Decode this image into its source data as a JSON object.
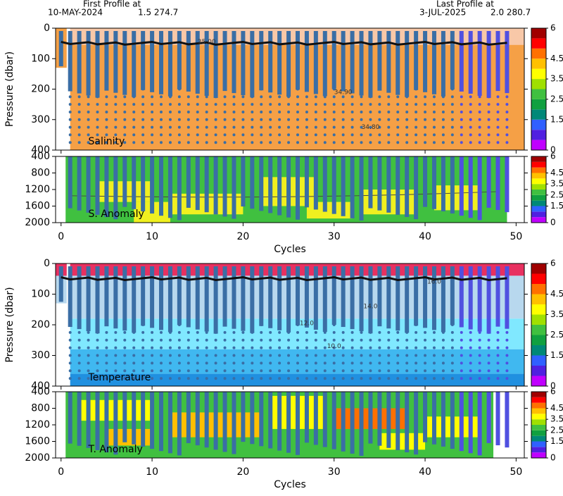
{
  "header": {
    "first_title": "First Profile at",
    "first_date": "10-MAY-2024",
    "first_pos": "1.5 274.7",
    "last_title": "Last Profile at",
    "last_date": "3-JUL-2025",
    "last_pos": "2.0 280.7"
  },
  "chart_data": [
    {
      "type": "section",
      "annotation": "Salinity",
      "ylabel": "Pressure (dbar)",
      "y_inverted": true,
      "ylim": [
        0,
        400
      ],
      "yticks": [
        0,
        100,
        200,
        300,
        400
      ],
      "xlim": [
        -0.6,
        50.9
      ],
      "xticks": [
        0,
        10,
        20,
        30,
        40,
        50
      ],
      "x": [
        0,
        1,
        2,
        3,
        4,
        5,
        6,
        7,
        8,
        9,
        10,
        11,
        12,
        13,
        14,
        15,
        16,
        17,
        18,
        19,
        20,
        21,
        22,
        23,
        24,
        25,
        26,
        27,
        28,
        29,
        30,
        31,
        32,
        33,
        34,
        35,
        36,
        37,
        38,
        39,
        40,
        41,
        42,
        43,
        44,
        45,
        46,
        47,
        48,
        49
      ],
      "contour_labels": [
        {
          "text": "34.90",
          "x": 31,
          "y": 210
        },
        {
          "text": "35.00",
          "x": 16,
          "y": 45
        },
        {
          "text": "34.80",
          "x": 34,
          "y": 325
        }
      ],
      "colorbar": {
        "ylim": [
          0,
          6
        ],
        "ticks": [
          0,
          1.5,
          2.5,
          3.5,
          4.5,
          6
        ]
      }
    },
    {
      "type": "section",
      "annotation": "S. Anomaly",
      "y_inverted": true,
      "ylim": [
        400,
        2000
      ],
      "yticks": [
        400,
        800,
        1200,
        1600,
        2000
      ],
      "xlim": [
        -0.6,
        50.9
      ],
      "xticks": [
        0,
        10,
        20,
        30,
        40,
        50
      ],
      "xlabel": "Cycles",
      "colorbar": {
        "ylim": [
          0,
          6
        ],
        "ticks": [
          0,
          1.5,
          2.5,
          3.5,
          4.5,
          6
        ]
      }
    },
    {
      "type": "section",
      "annotation": "Temperature",
      "ylabel": "Pressure (dbar)",
      "y_inverted": true,
      "ylim": [
        0,
        400
      ],
      "yticks": [
        0,
        100,
        200,
        300,
        400
      ],
      "xlim": [
        -0.6,
        50.9
      ],
      "xticks": [
        0,
        10,
        20,
        30,
        40,
        50
      ],
      "contour_labels": [
        {
          "text": "14.0",
          "x": 34,
          "y": 140
        },
        {
          "text": "12.0",
          "x": 27,
          "y": 195
        },
        {
          "text": "10.0",
          "x": 30,
          "y": 270
        },
        {
          "text": "16.0",
          "x": 41,
          "y": 60
        }
      ],
      "colorbar": {
        "ylim": [
          0,
          6
        ],
        "ticks": [
          0,
          1.5,
          2.5,
          3.5,
          4.5,
          6
        ]
      }
    },
    {
      "type": "section",
      "annotation": "T. Anomaly",
      "y_inverted": true,
      "ylim": [
        400,
        2000
      ],
      "yticks": [
        400,
        800,
        1200,
        1600,
        2000
      ],
      "xlim": [
        -0.6,
        50.9
      ],
      "xticks": [
        0,
        10,
        20,
        30,
        40,
        50
      ],
      "xlabel": "Cycles",
      "colorbar": {
        "ylim": [
          0,
          6
        ],
        "ticks": [
          0,
          1.5,
          2.5,
          3.5,
          4.5,
          6
        ]
      }
    }
  ]
}
